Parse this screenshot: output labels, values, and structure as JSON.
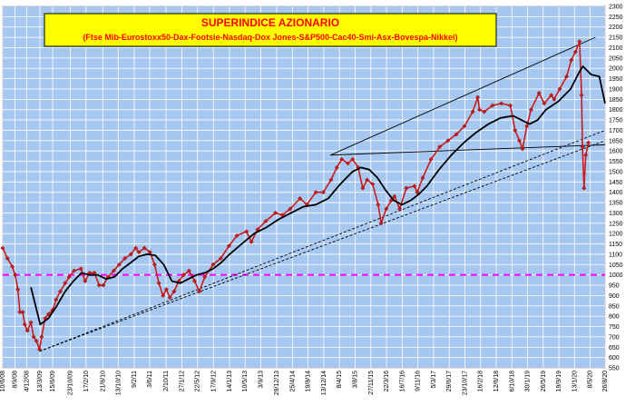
{
  "chart_data": {
    "type": "line",
    "title": "SUPERINDICE AZIONARIO",
    "subtitle": "(Ftse Mib-Eurostoxx50-Dax-Footsie-Nasdaq-Dox Jones-S&P500-Cac40-Smi-Asx-Bovespa-Nikkei)",
    "xlabel": "",
    "ylabel": "",
    "ylim": [
      550,
      2300
    ],
    "yticks": [
      550,
      600,
      650,
      700,
      750,
      800,
      850,
      900,
      950,
      1000,
      1050,
      1100,
      1150,
      1200,
      1250,
      1300,
      1350,
      1400,
      1450,
      1500,
      1550,
      1600,
      1650,
      1700,
      1750,
      1800,
      1850,
      1900,
      1950,
      2000,
      2050,
      2100,
      2150,
      2200,
      2250,
      2300
    ],
    "xrange": [
      "2008-06-10",
      "2020-08-26"
    ],
    "grid": true,
    "xticks": [
      {
        "date": "2008-06-10",
        "label": "10/6/08"
      },
      {
        "date": "2008-09-08",
        "label": "8/9/08"
      },
      {
        "date": "2008-12-04",
        "label": "4/12/08"
      },
      {
        "date": "2009-03-13",
        "label": "13/3/09"
      },
      {
        "date": "2009-06-15",
        "label": "15/6/09"
      },
      {
        "date": "2009-10-23",
        "label": "23/10/09"
      },
      {
        "date": "2010-02-17",
        "label": "17/2/10"
      },
      {
        "date": "2010-06-21",
        "label": "21/6/10"
      },
      {
        "date": "2010-10-13",
        "label": "13/10/10"
      },
      {
        "date": "2011-02-09",
        "label": "9/2/11"
      },
      {
        "date": "2011-06-03",
        "label": "3/6/11"
      },
      {
        "date": "2011-10-02",
        "label": "2/10/11"
      },
      {
        "date": "2012-01-27",
        "label": "27/1/12"
      },
      {
        "date": "2012-05-22",
        "label": "22/5/12"
      },
      {
        "date": "2012-09-17",
        "label": "17/9/12"
      },
      {
        "date": "2013-01-14",
        "label": "14/1/13"
      },
      {
        "date": "2013-05-10",
        "label": "10/5/13"
      },
      {
        "date": "2013-09-03",
        "label": "3/9/13"
      },
      {
        "date": "2013-12-29",
        "label": "29/12/13"
      },
      {
        "date": "2014-04-25",
        "label": "25/4/14"
      },
      {
        "date": "2014-08-19",
        "label": "19/8/14"
      },
      {
        "date": "2014-12-13",
        "label": "13/12/14"
      },
      {
        "date": "2015-04-08",
        "label": "8/4/15"
      },
      {
        "date": "2015-08-03",
        "label": "3/8/15"
      },
      {
        "date": "2015-11-27",
        "label": "27/11/15"
      },
      {
        "date": "2016-03-22",
        "label": "22/3/16"
      },
      {
        "date": "2016-07-16",
        "label": "16/7/16"
      },
      {
        "date": "2016-11-09",
        "label": "9/11/16"
      },
      {
        "date": "2017-03-05",
        "label": "5/3/17"
      },
      {
        "date": "2017-06-29",
        "label": "29/6/17"
      },
      {
        "date": "2017-10-23",
        "label": "23/10/17"
      },
      {
        "date": "2018-02-16",
        "label": "16/2/18"
      },
      {
        "date": "2018-06-12",
        "label": "12/6/18"
      },
      {
        "date": "2018-10-06",
        "label": "6/10/18"
      },
      {
        "date": "2019-01-30",
        "label": "30/1/19"
      },
      {
        "date": "2019-05-26",
        "label": "26/5/19"
      },
      {
        "date": "2019-09-19",
        "label": "19/9/19"
      },
      {
        "date": "2020-01-13",
        "label": "13/1/20"
      },
      {
        "date": "2020-05-08",
        "label": "8/5/20"
      },
      {
        "date": "2020-08-26",
        "label": "26/8/20"
      }
    ],
    "reference_line": {
      "y": 1000,
      "color": "#ff00ff",
      "style": "dashed"
    },
    "series": [
      {
        "color": "#cc1a1a",
        "marker": "diamond",
        "x": [
          "2008-06-10",
          "2008-07-15",
          "2008-08-20",
          "2008-09-10",
          "2008-09-30",
          "2008-10-15",
          "2008-11-05",
          "2008-11-20",
          "2008-12-10",
          "2009-01-05",
          "2009-01-25",
          "2009-02-15",
          "2009-03-09",
          "2009-03-25",
          "2009-04-20",
          "2009-05-15",
          "2009-06-15",
          "2009-07-10",
          "2009-08-10",
          "2009-09-15",
          "2009-10-15",
          "2009-11-20",
          "2010-01-10",
          "2010-02-10",
          "2010-03-15",
          "2010-04-20",
          "2010-05-25",
          "2010-06-25",
          "2010-07-30",
          "2010-09-10",
          "2010-10-20",
          "2010-12-01",
          "2011-01-15",
          "2011-02-20",
          "2011-03-15",
          "2011-04-25",
          "2011-06-05",
          "2011-07-10",
          "2011-08-10",
          "2011-09-10",
          "2011-10-05",
          "2011-10-30",
          "2011-12-01",
          "2012-01-05",
          "2012-02-10",
          "2012-03-20",
          "2012-05-01",
          "2012-06-05",
          "2012-07-15",
          "2012-09-15",
          "2012-11-10",
          "2013-01-10",
          "2013-03-10",
          "2013-05-20",
          "2013-06-25",
          "2013-08-10",
          "2013-10-10",
          "2013-12-20",
          "2014-02-10",
          "2014-04-10",
          "2014-06-20",
          "2014-08-10",
          "2014-10-15",
          "2014-12-10",
          "2015-02-05",
          "2015-03-20",
          "2015-04-25",
          "2015-06-10",
          "2015-07-15",
          "2015-08-25",
          "2015-09-28",
          "2015-10-30",
          "2015-12-10",
          "2016-01-20",
          "2016-02-11",
          "2016-03-20",
          "2016-04-25",
          "2016-05-20",
          "2016-06-27",
          "2016-08-15",
          "2016-10-15",
          "2016-11-04",
          "2016-12-15",
          "2017-02-15",
          "2017-04-20",
          "2017-06-20",
          "2017-08-20",
          "2017-10-20",
          "2017-12-20",
          "2018-01-26",
          "2018-02-08",
          "2018-03-15",
          "2018-05-15",
          "2018-07-20",
          "2018-09-25",
          "2018-10-30",
          "2018-11-30",
          "2018-12-24",
          "2019-01-25",
          "2019-02-25",
          "2019-04-25",
          "2019-06-03",
          "2019-07-25",
          "2019-08-15",
          "2019-09-25",
          "2019-11-15",
          "2019-12-20",
          "2020-01-20",
          "2020-02-19",
          "2020-03-05",
          "2020-03-12",
          "2020-03-23",
          "2020-04-05",
          "2020-04-25"
        ],
        "values": [
          1130,
          1080,
          1040,
          1000,
          930,
          820,
          820,
          760,
          730,
          770,
          700,
          680,
          640,
          700,
          790,
          810,
          830,
          880,
          920,
          960,
          990,
          1020,
          1030,
          970,
          1010,
          1010,
          950,
          950,
          990,
          1020,
          1050,
          1080,
          1100,
          1130,
          1110,
          1130,
          1110,
          1050,
          960,
          900,
          930,
          890,
          920,
          970,
          1000,
          1020,
          970,
          920,
          990,
          1050,
          1080,
          1140,
          1190,
          1210,
          1160,
          1220,
          1260,
          1300,
          1290,
          1320,
          1370,
          1340,
          1400,
          1400,
          1460,
          1520,
          1560,
          1540,
          1560,
          1520,
          1420,
          1460,
          1440,
          1340,
          1250,
          1320,
          1360,
          1380,
          1320,
          1420,
          1430,
          1400,
          1470,
          1560,
          1620,
          1650,
          1680,
          1720,
          1790,
          1860,
          1800,
          1790,
          1820,
          1830,
          1820,
          1700,
          1650,
          1610,
          1720,
          1800,
          1880,
          1830,
          1870,
          1850,
          1900,
          1960,
          2040,
          2080,
          2130,
          1870,
          1620,
          1420,
          1580,
          1640
        ]
      },
      {
        "color": "#000000",
        "marker": "none",
        "x": [
          "2009-01-05",
          "2009-03-15",
          "2009-05-15",
          "2009-07-15",
          "2009-09-15",
          "2009-11-15",
          "2010-01-15",
          "2010-03-15",
          "2010-05-15",
          "2010-07-15",
          "2010-09-15",
          "2010-11-15",
          "2011-01-15",
          "2011-03-15",
          "2011-05-15",
          "2011-07-15",
          "2011-09-15",
          "2011-11-15",
          "2012-01-15",
          "2012-03-15",
          "2012-05-15",
          "2012-07-15",
          "2012-09-15",
          "2012-11-15",
          "2013-01-15",
          "2013-04-15",
          "2013-07-15",
          "2013-10-15",
          "2014-01-15",
          "2014-04-15",
          "2014-07-15",
          "2014-10-15",
          "2015-01-15",
          "2015-04-15",
          "2015-07-15",
          "2015-09-15",
          "2015-11-15",
          "2016-01-15",
          "2016-03-15",
          "2016-05-15",
          "2016-07-15",
          "2016-09-15",
          "2016-11-15",
          "2017-01-15",
          "2017-04-15",
          "2017-07-15",
          "2017-10-15",
          "2018-01-15",
          "2018-04-15",
          "2018-07-15",
          "2018-10-15",
          "2018-12-15",
          "2019-02-15",
          "2019-04-15",
          "2019-06-15",
          "2019-09-15",
          "2019-12-15",
          "2020-02-15",
          "2020-03-15",
          "2020-05-15",
          "2020-07-15",
          "2020-08-26"
        ],
        "values": [
          940,
          760,
          790,
          850,
          920,
          970,
          1010,
          1000,
          1000,
          980,
          990,
          1030,
          1060,
          1090,
          1100,
          1095,
          1050,
          970,
          960,
          980,
          1000,
          1010,
          1030,
          1060,
          1100,
          1150,
          1200,
          1230,
          1270,
          1300,
          1330,
          1340,
          1370,
          1440,
          1500,
          1520,
          1510,
          1470,
          1410,
          1360,
          1340,
          1360,
          1390,
          1430,
          1510,
          1580,
          1640,
          1690,
          1730,
          1760,
          1770,
          1750,
          1730,
          1750,
          1800,
          1840,
          1900,
          1980,
          2010,
          1970,
          1960,
          1830
        ]
      }
    ],
    "trendlines": [
      {
        "style": "solid",
        "points": [
          [
            "2015-02-01",
            1580
          ],
          [
            "2020-06-15",
            2150
          ]
        ]
      },
      {
        "style": "solid",
        "points": [
          [
            "2015-02-01",
            1580
          ],
          [
            "2020-08-26",
            1630
          ]
        ]
      },
      {
        "style": "dashed",
        "points": [
          [
            "2009-03-09",
            630
          ],
          [
            "2020-08-26",
            1700
          ]
        ]
      },
      {
        "style": "dashed",
        "points": [
          [
            "2009-03-09",
            630
          ],
          [
            "2020-08-26",
            1650
          ]
        ]
      }
    ]
  }
}
